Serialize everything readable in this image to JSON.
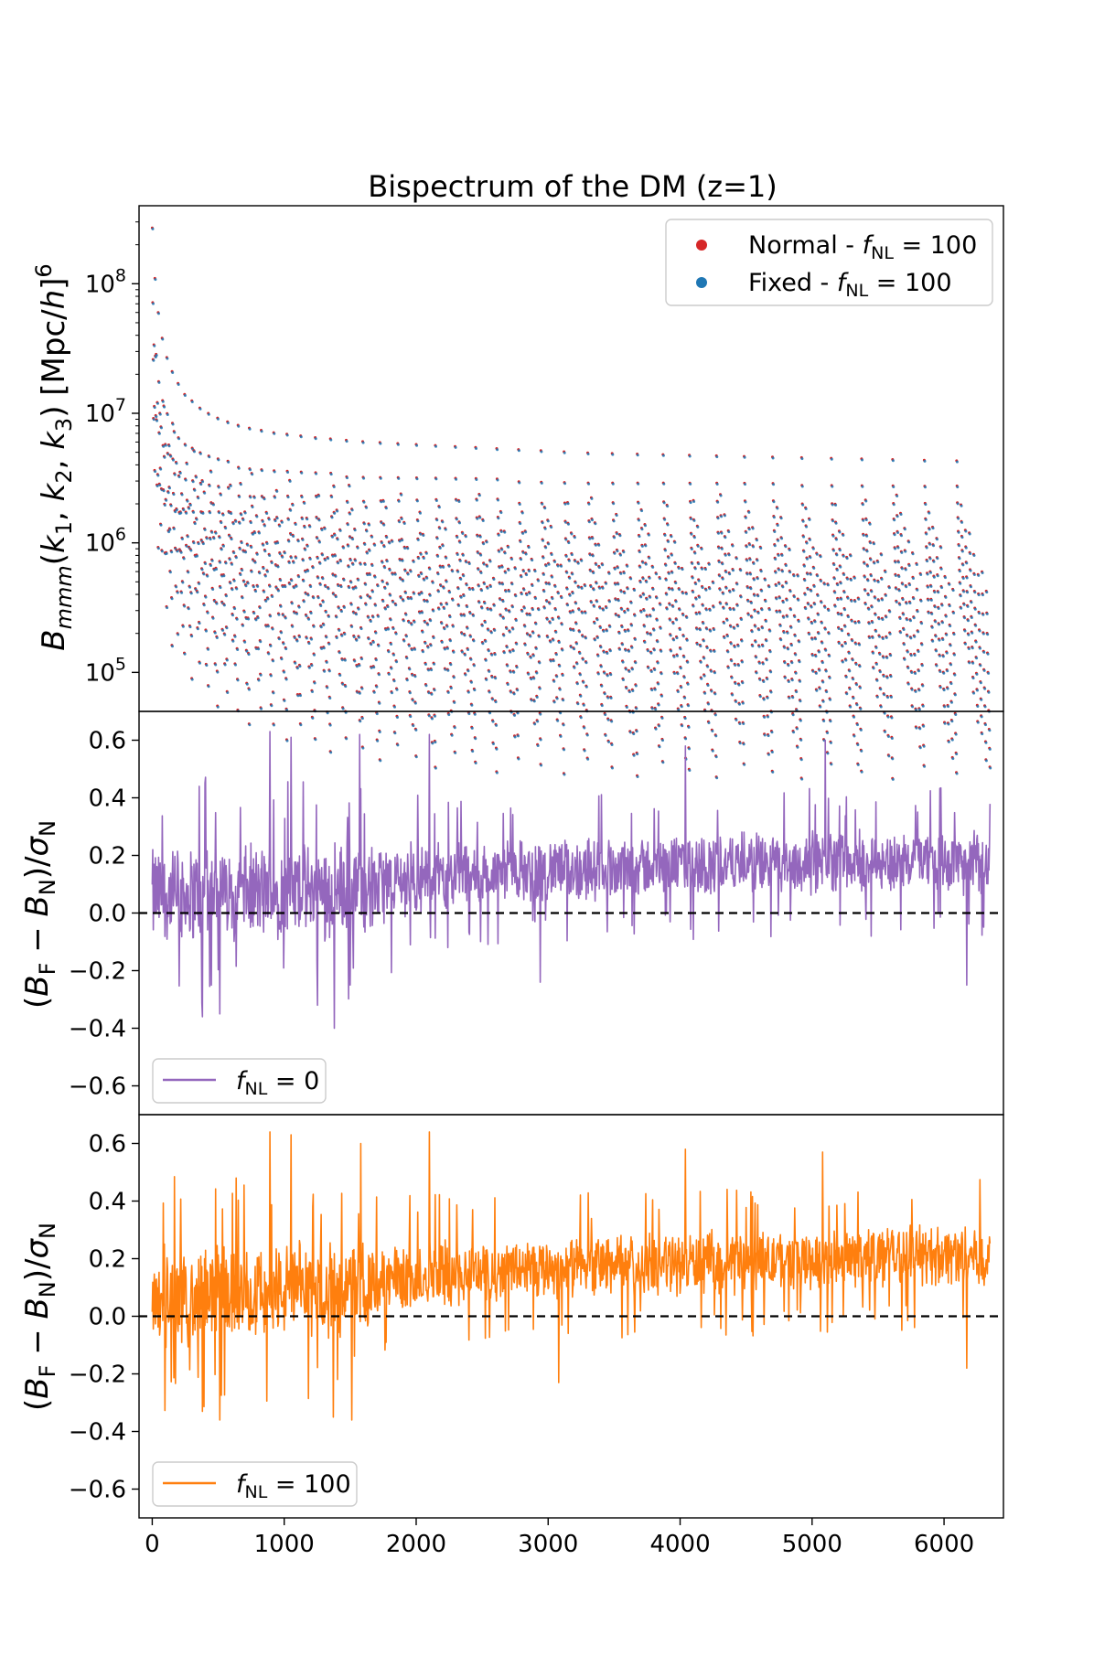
{
  "chart_data": [
    {
      "type": "scatter",
      "title": "Bispectrum of the DM (z=1)",
      "ylabel": "B_mmm(k1, k2, k3) [Mpc/h]^6",
      "yscale": "log",
      "xlim": [
        -100,
        6450
      ],
      "ylim": [
        50000,
        400000000
      ],
      "ytick_labels": [
        "10^5",
        "10^6",
        "10^7",
        "10^8"
      ],
      "yticks": [
        100000,
        1000000,
        10000000,
        100000000
      ],
      "legend_position": "top-right",
      "series": [
        {
          "name": "Normal - f_NL = 100",
          "color": "#d62728"
        },
        {
          "name": "Fixed - f_NL = 100",
          "color": "#1f77b4"
        }
      ],
      "n_points": 6350,
      "pattern": {
        "description": "sawtooth blocks of triangle configurations",
        "first_value": 270000000,
        "block_starts": [
          0,
          20,
          45,
          75,
          110,
          150,
          195,
          245,
          300,
          360,
          425,
          495,
          570,
          650,
          735,
          825,
          920,
          1020,
          1125,
          1235,
          1350,
          1470,
          1595,
          1725,
          1860,
          2000,
          2145,
          2295,
          2450,
          2610,
          2775,
          2945,
          3120,
          3300,
          3485,
          3675,
          3870,
          4070,
          4275,
          4485,
          4700,
          4920,
          5145,
          5375,
          5610,
          5850,
          6095
        ],
        "block_peak": [
          270000000,
          110000000,
          60000000,
          38000000,
          27000000,
          21000000,
          17000000,
          14000000,
          12500000,
          11000000,
          10000000,
          9200000,
          8600000,
          8100000,
          7700000,
          7400000,
          7100000,
          6900000,
          6700000,
          6500000,
          6350000,
          6200000,
          6050000,
          5950000,
          5850000,
          5750000,
          5650000,
          5550000,
          5450000,
          5350000,
          5250000,
          5150000,
          5050000,
          4950000,
          4900000,
          4850000,
          4800000,
          4750000,
          4700000,
          4650000,
          4600000,
          4550000,
          4500000,
          4450000,
          4400000,
          4350000,
          4300000
        ],
        "block_trough": [
          8000000,
          3000000,
          1500000,
          900000,
          650000,
          500000,
          420000,
          360000,
          310000,
          270000,
          240000,
          215000,
          195000,
          180000,
          165000,
          155000,
          145000,
          138000,
          130000,
          124000,
          118000,
          113000,
          109000,
          105000,
          102000,
          99000,
          97000,
          95000,
          93000,
          91000,
          90000,
          89000,
          88000,
          87000,
          86000,
          85500,
          85000,
          84500,
          84000,
          83500,
          83000,
          82500,
          82000,
          81500,
          81000,
          80500,
          80000
        ]
      }
    },
    {
      "type": "line",
      "ylabel": "(B_F − B_N)/σ_N",
      "xlim": [
        -100,
        6450
      ],
      "ylim": [
        -0.7,
        0.7
      ],
      "yticks": [
        -0.6,
        -0.4,
        -0.2,
        0.0,
        0.2,
        0.4,
        0.6
      ],
      "ytick_labels": [
        "−0.6",
        "−0.4",
        "−0.2",
        "0.0",
        "0.2",
        "0.4",
        "0.6"
      ],
      "legend_position": "bottom-left",
      "series": [
        {
          "name": "f_NL = 0",
          "color": "#9467bd"
        }
      ],
      "reference_line": {
        "y": 0.0,
        "style": "dashed",
        "color": "#000000"
      },
      "trend": {
        "x": [
          0,
          1500,
          2100,
          3000,
          4500,
          6350
        ],
        "mean": [
          0.06,
          0.08,
          0.13,
          0.15,
          0.17,
          0.18
        ],
        "spread": [
          0.16,
          0.15,
          0.11,
          0.1,
          0.1,
          0.1
        ]
      },
      "peaks": [
        {
          "x": 890,
          "y": 0.63
        },
        {
          "x": 1050,
          "y": 0.61
        },
        {
          "x": 2100,
          "y": 0.62
        },
        {
          "x": 1570,
          "y": 0.62
        },
        {
          "x": 4040,
          "y": 0.58
        },
        {
          "x": 5100,
          "y": 0.6
        }
      ],
      "troughs": [
        {
          "x": 1380,
          "y": -0.4
        },
        {
          "x": 380,
          "y": -0.36
        },
        {
          "x": 510,
          "y": -0.35
        },
        {
          "x": 1250,
          "y": -0.32
        },
        {
          "x": 2940,
          "y": -0.24
        },
        {
          "x": 6170,
          "y": -0.25
        }
      ]
    },
    {
      "type": "line",
      "ylabel": "(B_F − B_N)/σ_N",
      "xlabel": "",
      "xlim": [
        -100,
        6450
      ],
      "ylim": [
        -0.7,
        0.7
      ],
      "xticks": [
        0,
        1000,
        2000,
        3000,
        4000,
        5000,
        6000
      ],
      "xtick_labels": [
        "0",
        "1000",
        "2000",
        "3000",
        "4000",
        "5000",
        "6000"
      ],
      "yticks": [
        -0.6,
        -0.4,
        -0.2,
        0.0,
        0.2,
        0.4,
        0.6
      ],
      "ytick_labels": [
        "−0.6",
        "−0.4",
        "−0.2",
        "0.0",
        "0.2",
        "0.4",
        "0.6"
      ],
      "legend_position": "bottom-left",
      "series": [
        {
          "name": "f_NL = 100",
          "color": "#ff7f0e"
        }
      ],
      "reference_line": {
        "y": 0.0,
        "style": "dashed",
        "color": "#000000"
      },
      "trend": {
        "x": [
          0,
          1500,
          2100,
          3000,
          4500,
          6350
        ],
        "mean": [
          0.07,
          0.1,
          0.15,
          0.17,
          0.19,
          0.22
        ],
        "spread": [
          0.16,
          0.15,
          0.11,
          0.1,
          0.1,
          0.1
        ]
      },
      "peaks": [
        {
          "x": 890,
          "y": 0.64
        },
        {
          "x": 1050,
          "y": 0.63
        },
        {
          "x": 2100,
          "y": 0.64
        },
        {
          "x": 1580,
          "y": 0.6
        },
        {
          "x": 4040,
          "y": 0.58
        },
        {
          "x": 5080,
          "y": 0.57
        }
      ],
      "troughs": [
        {
          "x": 1510,
          "y": -0.36
        },
        {
          "x": 510,
          "y": -0.36
        },
        {
          "x": 1370,
          "y": -0.35
        },
        {
          "x": 380,
          "y": -0.33
        },
        {
          "x": 3080,
          "y": -0.23
        },
        {
          "x": 6170,
          "y": -0.18
        }
      ]
    }
  ]
}
